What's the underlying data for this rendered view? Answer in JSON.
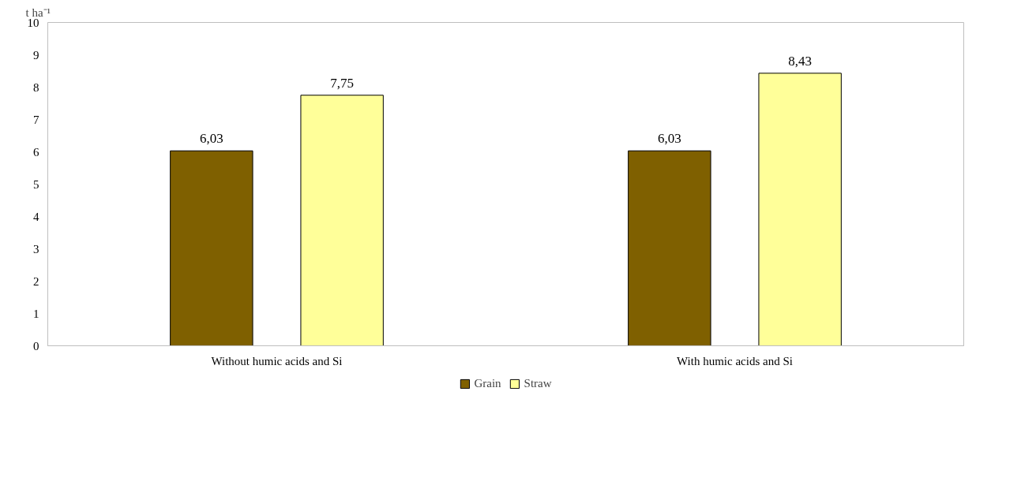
{
  "chart_data": {
    "type": "bar",
    "ylabel": "t ha⁻¹",
    "categories": [
      "Without humic acids and Si",
      "With humic acids and Si"
    ],
    "series": [
      {
        "name": "Grain",
        "color": "#7f6000",
        "values": [
          6.03,
          6.03
        ],
        "value_labels": [
          "6,03",
          "6,03"
        ]
      },
      {
        "name": "Straw",
        "color": "#ffff99",
        "values": [
          7.75,
          8.43
        ],
        "value_labels": [
          "7,75",
          "8,43"
        ]
      }
    ],
    "ylim": [
      0,
      10
    ],
    "yticks": [
      0,
      1,
      2,
      3,
      4,
      5,
      6,
      7,
      8,
      9,
      10
    ],
    "grid": false,
    "legend": "bottom"
  }
}
